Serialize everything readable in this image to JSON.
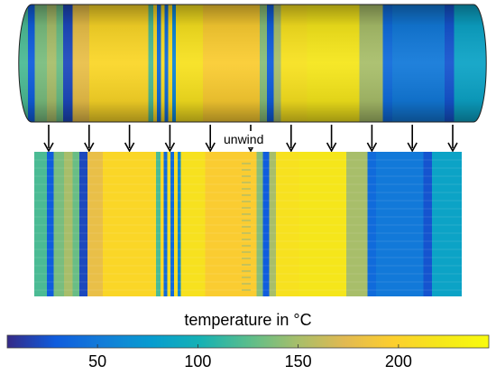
{
  "annotation": {
    "unwind_label": "unwind"
  },
  "colorbar": {
    "title": "temperature in °C",
    "colormap": "parula",
    "range": [
      5,
      245
    ],
    "ticks": [
      {
        "value": 50,
        "label": "50"
      },
      {
        "value": 100,
        "label": "100"
      },
      {
        "value": 150,
        "label": "150"
      },
      {
        "value": 200,
        "label": "200"
      }
    ]
  },
  "arrows": {
    "count": 11
  },
  "temperature_profile": {
    "unit": "°C",
    "bands": [
      {
        "from": 0.0,
        "to": 0.03,
        "value": 120
      },
      {
        "from": 0.03,
        "to": 0.045,
        "value": 30
      },
      {
        "from": 0.045,
        "to": 0.07,
        "value": 135
      },
      {
        "from": 0.07,
        "to": 0.09,
        "value": 150
      },
      {
        "from": 0.09,
        "to": 0.105,
        "value": 130
      },
      {
        "from": 0.105,
        "to": 0.125,
        "value": 20
      },
      {
        "from": 0.125,
        "to": 0.16,
        "value": 180
      },
      {
        "from": 0.16,
        "to": 0.285,
        "value": 205
      },
      {
        "from": 0.285,
        "to": 0.295,
        "value": 120
      },
      {
        "from": 0.295,
        "to": 0.303,
        "value": 205
      },
      {
        "from": 0.303,
        "to": 0.311,
        "value": 40
      },
      {
        "from": 0.311,
        "to": 0.319,
        "value": 210
      },
      {
        "from": 0.319,
        "to": 0.327,
        "value": 40
      },
      {
        "from": 0.327,
        "to": 0.335,
        "value": 210
      },
      {
        "from": 0.335,
        "to": 0.343,
        "value": 60
      },
      {
        "from": 0.343,
        "to": 0.4,
        "value": 215
      },
      {
        "from": 0.4,
        "to": 0.52,
        "value": 195
      },
      {
        "from": 0.52,
        "to": 0.535,
        "value": 140
      },
      {
        "from": 0.535,
        "to": 0.55,
        "value": 30
      },
      {
        "from": 0.55,
        "to": 0.565,
        "value": 150
      },
      {
        "from": 0.565,
        "to": 0.62,
        "value": 215
      },
      {
        "from": 0.62,
        "to": 0.73,
        "value": 220
      },
      {
        "from": 0.73,
        "to": 0.78,
        "value": 150
      },
      {
        "from": 0.78,
        "to": 0.8,
        "value": 40
      },
      {
        "from": 0.8,
        "to": 0.91,
        "value": 50
      },
      {
        "from": 0.91,
        "to": 0.93,
        "value": 25
      },
      {
        "from": 0.93,
        "to": 1.0,
        "value": 85
      }
    ]
  }
}
